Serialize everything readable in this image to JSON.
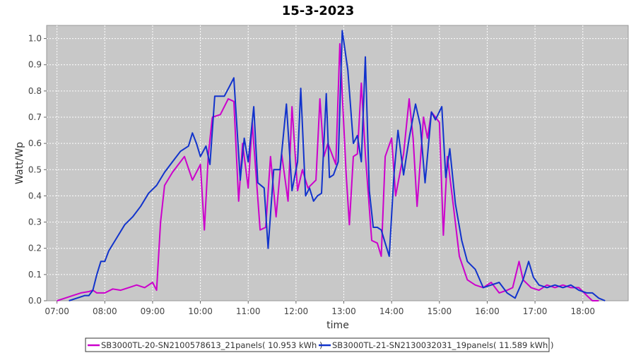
{
  "chart_data": {
    "type": "line",
    "title": "15-3-2023",
    "xlabel": "time",
    "ylabel": "Watt/Wp",
    "xlim": [
      "06:47",
      "18:57"
    ],
    "ylim": [
      0,
      1.05
    ],
    "x_ticks": [
      "07:00",
      "08:00",
      "09:00",
      "10:00",
      "11:00",
      "12:00",
      "13:00",
      "14:00",
      "15:00",
      "16:00",
      "17:00",
      "18:00"
    ],
    "y_ticks": [
      "0.0",
      "0.1",
      "0.2",
      "0.3",
      "0.4",
      "0.5",
      "0.6",
      "0.7",
      "0.8",
      "0.9",
      "1.0"
    ],
    "grid": true,
    "legend_position": "bottom",
    "series": [
      {
        "name": "SB3000TL-20-SN2100578613_21panels( 10.953 kWh )",
        "color": "#cc00cc",
        "points": [
          [
            "07:00",
            0.0
          ],
          [
            "07:10",
            0.01
          ],
          [
            "07:20",
            0.02
          ],
          [
            "07:30",
            0.03
          ],
          [
            "07:40",
            0.035
          ],
          [
            "07:45",
            0.04
          ],
          [
            "07:50",
            0.03
          ],
          [
            "08:00",
            0.03
          ],
          [
            "08:10",
            0.045
          ],
          [
            "08:20",
            0.04
          ],
          [
            "08:30",
            0.05
          ],
          [
            "08:40",
            0.06
          ],
          [
            "08:50",
            0.05
          ],
          [
            "09:00",
            0.07
          ],
          [
            "09:05",
            0.04
          ],
          [
            "09:10",
            0.3
          ],
          [
            "09:15",
            0.44
          ],
          [
            "09:25",
            0.49
          ],
          [
            "09:35",
            0.53
          ],
          [
            "09:40",
            0.55
          ],
          [
            "09:50",
            0.46
          ],
          [
            "10:00",
            0.52
          ],
          [
            "10:05",
            0.27
          ],
          [
            "10:10",
            0.56
          ],
          [
            "10:15",
            0.7
          ],
          [
            "10:25",
            0.71
          ],
          [
            "10:35",
            0.77
          ],
          [
            "10:42",
            0.76
          ],
          [
            "10:48",
            0.38
          ],
          [
            "10:53",
            0.6
          ],
          [
            "11:00",
            0.43
          ],
          [
            "11:05",
            0.68
          ],
          [
            "11:15",
            0.27
          ],
          [
            "11:22",
            0.28
          ],
          [
            "11:28",
            0.55
          ],
          [
            "11:35",
            0.32
          ],
          [
            "11:42",
            0.56
          ],
          [
            "11:50",
            0.38
          ],
          [
            "11:55",
            0.74
          ],
          [
            "12:02",
            0.42
          ],
          [
            "12:08",
            0.5
          ],
          [
            "12:15",
            0.43
          ],
          [
            "12:25",
            0.46
          ],
          [
            "12:30",
            0.77
          ],
          [
            "12:35",
            0.55
          ],
          [
            "12:40",
            0.6
          ],
          [
            "12:50",
            0.52
          ],
          [
            "12:55",
            0.98
          ],
          [
            "13:03",
            0.48
          ],
          [
            "13:07",
            0.29
          ],
          [
            "13:12",
            0.55
          ],
          [
            "13:17",
            0.56
          ],
          [
            "13:22",
            0.83
          ],
          [
            "13:27",
            0.56
          ],
          [
            "13:35",
            0.23
          ],
          [
            "13:42",
            0.22
          ],
          [
            "13:47",
            0.17
          ],
          [
            "13:52",
            0.55
          ],
          [
            "14:00",
            0.62
          ],
          [
            "14:05",
            0.4
          ],
          [
            "14:15",
            0.56
          ],
          [
            "14:22",
            0.77
          ],
          [
            "14:27",
            0.62
          ],
          [
            "14:32",
            0.36
          ],
          [
            "14:40",
            0.7
          ],
          [
            "14:45",
            0.62
          ],
          [
            "14:50",
            0.72
          ],
          [
            "14:55",
            0.7
          ],
          [
            "15:00",
            0.68
          ],
          [
            "15:05",
            0.25
          ],
          [
            "15:10",
            0.55
          ],
          [
            "15:18",
            0.35
          ],
          [
            "15:25",
            0.17
          ],
          [
            "15:35",
            0.08
          ],
          [
            "15:45",
            0.06
          ],
          [
            "15:55",
            0.05
          ],
          [
            "16:05",
            0.07
          ],
          [
            "16:15",
            0.03
          ],
          [
            "16:25",
            0.04
          ],
          [
            "16:32",
            0.05
          ],
          [
            "16:40",
            0.15
          ],
          [
            "16:45",
            0.08
          ],
          [
            "16:55",
            0.05
          ],
          [
            "17:05",
            0.04
          ],
          [
            "17:15",
            0.06
          ],
          [
            "17:25",
            0.05
          ],
          [
            "17:35",
            0.06
          ],
          [
            "17:45",
            0.05
          ],
          [
            "17:55",
            0.05
          ],
          [
            "18:05",
            0.02
          ],
          [
            "18:12",
            0.0
          ],
          [
            "18:20",
            0.0
          ]
        ]
      },
      {
        "name": "SB3000TL-21-SN2130032031_19panels( 11.589 kWh )",
        "color": "#1133cc",
        "points": [
          [
            "07:15",
            0.0
          ],
          [
            "07:25",
            0.01
          ],
          [
            "07:35",
            0.02
          ],
          [
            "07:40",
            0.02
          ],
          [
            "07:45",
            0.04
          ],
          [
            "07:50",
            0.1
          ],
          [
            "07:55",
            0.15
          ],
          [
            "08:00",
            0.15
          ],
          [
            "08:05",
            0.19
          ],
          [
            "08:15",
            0.24
          ],
          [
            "08:25",
            0.29
          ],
          [
            "08:35",
            0.32
          ],
          [
            "08:45",
            0.36
          ],
          [
            "08:55",
            0.41
          ],
          [
            "09:05",
            0.44
          ],
          [
            "09:15",
            0.49
          ],
          [
            "09:25",
            0.53
          ],
          [
            "09:35",
            0.57
          ],
          [
            "09:45",
            0.59
          ],
          [
            "09:50",
            0.64
          ],
          [
            "09:55",
            0.6
          ],
          [
            "10:00",
            0.55
          ],
          [
            "10:07",
            0.59
          ],
          [
            "10:12",
            0.52
          ],
          [
            "10:18",
            0.78
          ],
          [
            "10:25",
            0.78
          ],
          [
            "10:30",
            0.78
          ],
          [
            "10:37",
            0.82
          ],
          [
            "10:42",
            0.85
          ],
          [
            "10:50",
            0.46
          ],
          [
            "10:55",
            0.62
          ],
          [
            "11:00",
            0.53
          ],
          [
            "11:07",
            0.74
          ],
          [
            "11:12",
            0.45
          ],
          [
            "11:20",
            0.43
          ],
          [
            "11:25",
            0.2
          ],
          [
            "11:32",
            0.5
          ],
          [
            "11:40",
            0.5
          ],
          [
            "11:48",
            0.75
          ],
          [
            "11:55",
            0.42
          ],
          [
            "12:02",
            0.53
          ],
          [
            "12:06",
            0.81
          ],
          [
            "12:12",
            0.4
          ],
          [
            "12:17",
            0.43
          ],
          [
            "12:22",
            0.38
          ],
          [
            "12:27",
            0.4
          ],
          [
            "12:32",
            0.41
          ],
          [
            "12:38",
            0.79
          ],
          [
            "12:42",
            0.47
          ],
          [
            "12:47",
            0.48
          ],
          [
            "12:53",
            0.53
          ],
          [
            "12:58",
            1.03
          ],
          [
            "13:05",
            0.88
          ],
          [
            "13:12",
            0.6
          ],
          [
            "13:17",
            0.63
          ],
          [
            "13:22",
            0.53
          ],
          [
            "13:27",
            0.93
          ],
          [
            "13:32",
            0.42
          ],
          [
            "13:37",
            0.28
          ],
          [
            "13:42",
            0.28
          ],
          [
            "13:47",
            0.27
          ],
          [
            "13:52",
            0.22
          ],
          [
            "13:57",
            0.17
          ],
          [
            "14:03",
            0.48
          ],
          [
            "14:08",
            0.65
          ],
          [
            "14:15",
            0.48
          ],
          [
            "14:22",
            0.62
          ],
          [
            "14:30",
            0.75
          ],
          [
            "14:36",
            0.67
          ],
          [
            "14:42",
            0.45
          ],
          [
            "14:50",
            0.72
          ],
          [
            "14:55",
            0.69
          ],
          [
            "15:03",
            0.74
          ],
          [
            "15:08",
            0.47
          ],
          [
            "15:13",
            0.58
          ],
          [
            "15:20",
            0.37
          ],
          [
            "15:28",
            0.23
          ],
          [
            "15:35",
            0.15
          ],
          [
            "15:45",
            0.12
          ],
          [
            "15:55",
            0.05
          ],
          [
            "16:05",
            0.06
          ],
          [
            "16:15",
            0.07
          ],
          [
            "16:25",
            0.03
          ],
          [
            "16:35",
            0.01
          ],
          [
            "16:45",
            0.08
          ],
          [
            "16:52",
            0.15
          ],
          [
            "16:58",
            0.09
          ],
          [
            "17:05",
            0.06
          ],
          [
            "17:15",
            0.05
          ],
          [
            "17:25",
            0.06
          ],
          [
            "17:35",
            0.05
          ],
          [
            "17:45",
            0.06
          ],
          [
            "17:55",
            0.04
          ],
          [
            "18:05",
            0.03
          ],
          [
            "18:12",
            0.03
          ],
          [
            "18:20",
            0.01
          ],
          [
            "18:28",
            0.0
          ]
        ]
      }
    ]
  }
}
